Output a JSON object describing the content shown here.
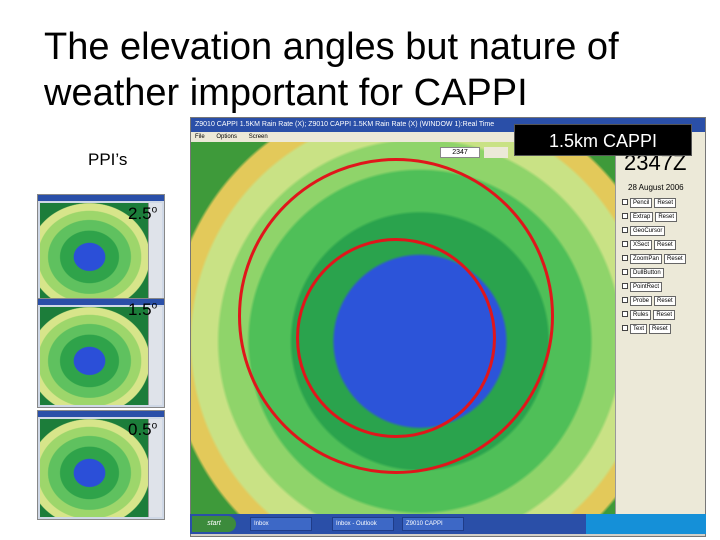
{
  "slide": {
    "title": "The elevation angles but nature of weather important for CAPPI",
    "ppi_label": "PPI’s",
    "cappi_label": "1.5km CAPPI"
  },
  "thumbnails": [
    {
      "angle": "2.5",
      "unit": "o"
    },
    {
      "angle": "1.5",
      "unit": "o"
    },
    {
      "angle": "0.5",
      "unit": "o"
    }
  ],
  "radar_window": {
    "title": "Z9010 CAPPI 1.5KM Rain Rate (X); Z9010 CAPPI 1.5KM Rain Rate (X) (WINDOW 1):Real Time",
    "menu": [
      "File",
      "Options",
      "Screen"
    ],
    "time_field": "2347",
    "big_time": "2347Z",
    "date": "28 August 2006",
    "controls": [
      {
        "label": "Pencil",
        "action": "Reset"
      },
      {
        "label": "Extrap",
        "action": "Reset"
      },
      {
        "label": "GeoCursor",
        "action": ""
      },
      {
        "label": "XSect",
        "action": "Reset"
      },
      {
        "label": "ZoomPan",
        "action": "Reset"
      },
      {
        "label": "DullButton",
        "action": ""
      },
      {
        "label": "PointRect",
        "action": ""
      },
      {
        "label": "Probe",
        "action": "Reset"
      },
      {
        "label": "Rules",
        "action": "Reset"
      },
      {
        "label": "Text",
        "action": "Reset"
      }
    ]
  },
  "taskbar": {
    "start_label": "start",
    "items": [
      "Inbox",
      "Inbox - Outlook",
      "Z9010 CAPPI"
    ]
  },
  "colors": {
    "accent_red": "#e0161b",
    "titlebar_blue": "#2a4fa8"
  }
}
